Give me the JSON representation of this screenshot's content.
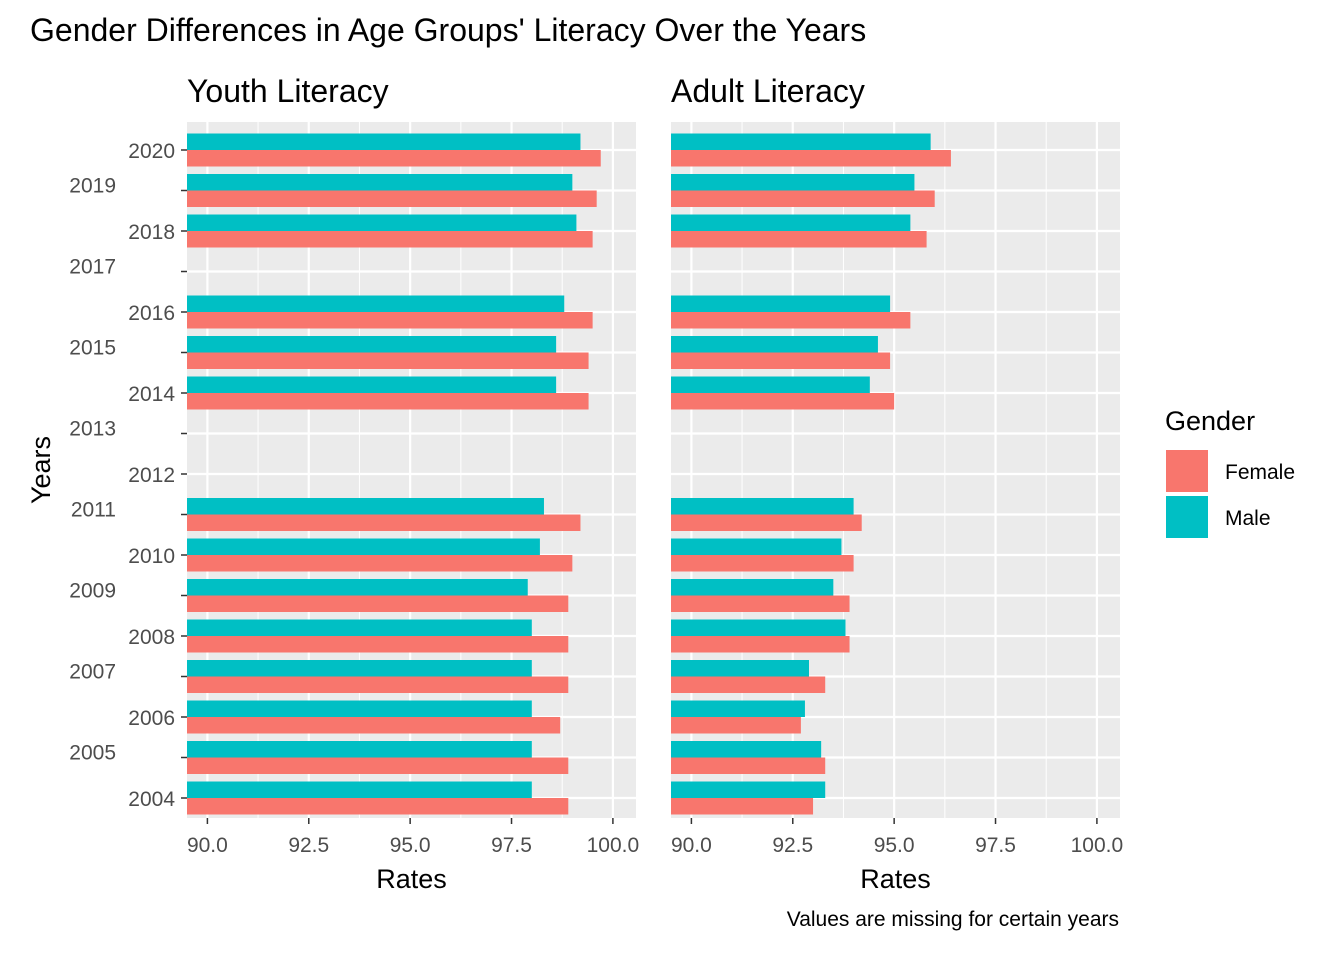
{
  "title": "Gender Differences in Age Groups' Literacy Over the Years",
  "caption": "Values are missing for certain years",
  "colors": {
    "Female": "#F8766D",
    "Male": "#00BFC4",
    "panel_bg": "#EBEBEB",
    "grid": "#FFFFFF"
  },
  "legend": {
    "title": "Gender",
    "placement": "right",
    "items": [
      {
        "label": "Female",
        "color": "#F8766D"
      },
      {
        "label": "Male",
        "color": "#00BFC4"
      }
    ]
  },
  "chart_data": [
    {
      "type": "bar",
      "orientation": "horizontal",
      "title": "Youth Literacy",
      "xlabel": "Rates",
      "ylabel": "Years",
      "xlim": [
        90,
        100
      ],
      "xticks": [
        "90.0",
        "92.5",
        "95.0",
        "97.5",
        "100.0"
      ],
      "categories": [
        "2004",
        "2005",
        "2006",
        "2007",
        "2008",
        "2009",
        "2010",
        "2011",
        "2012",
        "2013",
        "2014",
        "2015",
        "2016",
        "2017",
        "2018",
        "2019",
        "2020"
      ],
      "series": [
        {
          "name": "Female",
          "values": [
            98.9,
            98.9,
            98.7,
            98.9,
            98.9,
            98.9,
            99.0,
            99.2,
            null,
            null,
            99.4,
            99.4,
            99.5,
            null,
            99.5,
            99.6,
            99.7
          ]
        },
        {
          "name": "Male",
          "values": [
            98.0,
            98.0,
            98.0,
            98.0,
            98.0,
            97.9,
            98.2,
            98.3,
            null,
            null,
            98.6,
            98.6,
            98.8,
            null,
            99.1,
            99.0,
            99.2
          ]
        }
      ]
    },
    {
      "type": "bar",
      "orientation": "horizontal",
      "title": "Adult Literacy",
      "xlabel": "Rates",
      "ylabel": "",
      "xlim": [
        90,
        100
      ],
      "xticks": [
        "90.0",
        "92.5",
        "95.0",
        "97.5",
        "100.0"
      ],
      "categories": [
        "2004",
        "2005",
        "2006",
        "2007",
        "2008",
        "2009",
        "2010",
        "2011",
        "2012",
        "2013",
        "2014",
        "2015",
        "2016",
        "2017",
        "2018",
        "2019",
        "2020"
      ],
      "series": [
        {
          "name": "Female",
          "values": [
            93.0,
            93.3,
            92.7,
            93.3,
            93.9,
            93.9,
            94.0,
            94.2,
            null,
            null,
            95.0,
            94.9,
            95.4,
            null,
            95.8,
            96.0,
            96.4
          ]
        },
        {
          "name": "Male",
          "values": [
            93.3,
            93.2,
            92.8,
            92.9,
            93.8,
            93.5,
            93.7,
            94.0,
            null,
            null,
            94.4,
            94.6,
            94.9,
            null,
            95.4,
            95.5,
            95.9
          ]
        }
      ]
    }
  ]
}
